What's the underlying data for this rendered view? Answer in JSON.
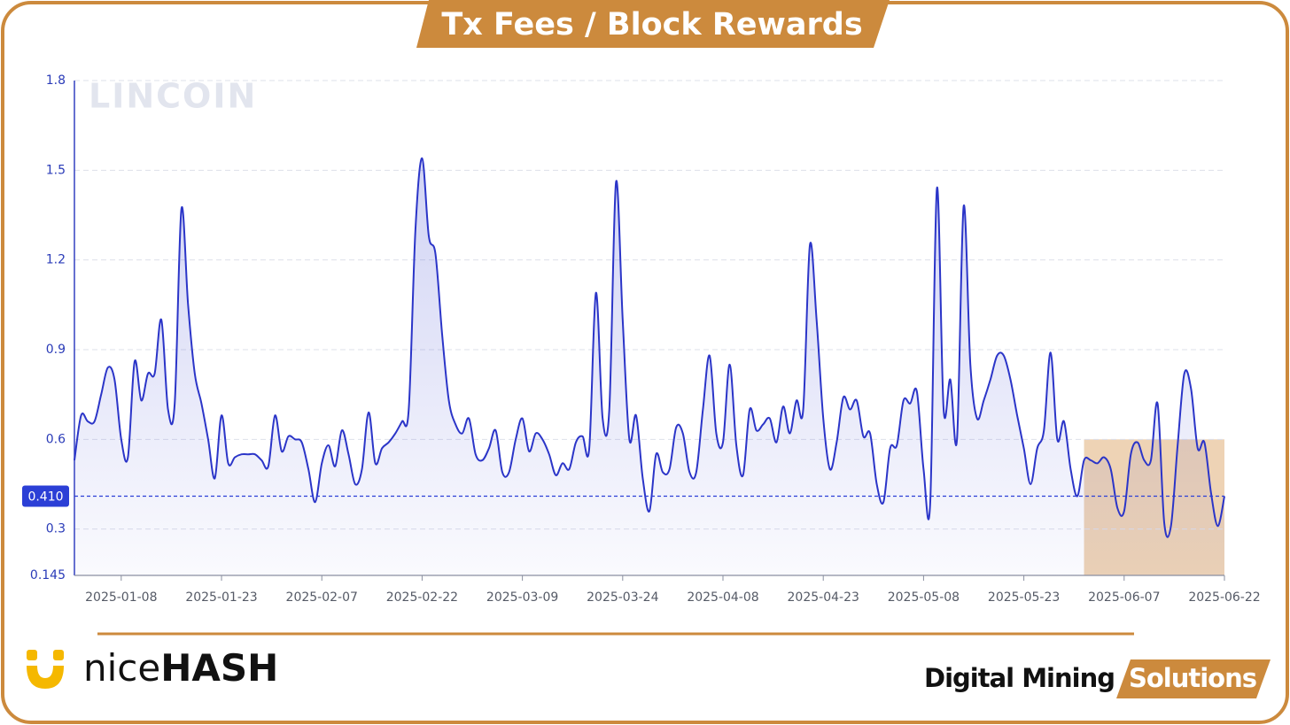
{
  "chart_data": {
    "type": "area",
    "title": "Tx Fees / Block Rewards",
    "x": [
      "2025-01-01",
      "2025-01-02",
      "2025-01-03",
      "2025-01-04",
      "2025-01-05",
      "2025-01-06",
      "2025-01-07",
      "2025-01-08",
      "2025-01-09",
      "2025-01-10",
      "2025-01-11",
      "2025-01-12",
      "2025-01-13",
      "2025-01-14",
      "2025-01-15",
      "2025-01-16",
      "2025-01-17",
      "2025-01-18",
      "2025-01-19",
      "2025-01-20",
      "2025-01-21",
      "2025-01-22",
      "2025-01-23",
      "2025-01-24",
      "2025-01-25",
      "2025-01-26",
      "2025-01-27",
      "2025-01-28",
      "2025-01-29",
      "2025-01-30",
      "2025-01-31",
      "2025-02-01",
      "2025-02-02",
      "2025-02-03",
      "2025-02-04",
      "2025-02-05",
      "2025-02-06",
      "2025-02-07",
      "2025-02-08",
      "2025-02-09",
      "2025-02-10",
      "2025-02-11",
      "2025-02-12",
      "2025-02-13",
      "2025-02-14",
      "2025-02-15",
      "2025-02-16",
      "2025-02-17",
      "2025-02-18",
      "2025-02-19",
      "2025-02-20",
      "2025-02-21",
      "2025-02-22",
      "2025-02-23",
      "2025-02-24",
      "2025-02-25",
      "2025-02-26",
      "2025-02-27",
      "2025-02-28",
      "2025-03-01",
      "2025-03-02",
      "2025-03-03",
      "2025-03-04",
      "2025-03-05",
      "2025-03-06",
      "2025-03-07",
      "2025-03-08",
      "2025-03-09",
      "2025-03-10",
      "2025-03-11",
      "2025-03-12",
      "2025-03-13",
      "2025-03-14",
      "2025-03-15",
      "2025-03-16",
      "2025-03-17",
      "2025-03-18",
      "2025-03-19",
      "2025-03-20",
      "2025-03-21",
      "2025-03-22",
      "2025-03-23",
      "2025-03-24",
      "2025-03-25",
      "2025-03-26",
      "2025-03-27",
      "2025-03-28",
      "2025-03-29",
      "2025-03-30",
      "2025-03-31",
      "2025-04-01",
      "2025-04-02",
      "2025-04-03",
      "2025-04-04",
      "2025-04-05",
      "2025-04-06",
      "2025-04-07",
      "2025-04-08",
      "2025-04-09",
      "2025-04-10",
      "2025-04-11",
      "2025-04-12",
      "2025-04-13",
      "2025-04-14",
      "2025-04-15",
      "2025-04-16",
      "2025-04-17",
      "2025-04-18",
      "2025-04-19",
      "2025-04-20",
      "2025-04-21",
      "2025-04-22",
      "2025-04-23",
      "2025-04-24",
      "2025-04-25",
      "2025-04-26",
      "2025-04-27",
      "2025-04-28",
      "2025-04-29",
      "2025-04-30",
      "2025-05-01",
      "2025-05-02",
      "2025-05-03",
      "2025-05-04",
      "2025-05-05",
      "2025-05-06",
      "2025-05-07",
      "2025-05-08",
      "2025-05-09",
      "2025-05-10",
      "2025-05-11",
      "2025-05-12",
      "2025-05-13",
      "2025-05-14",
      "2025-05-15",
      "2025-05-16",
      "2025-05-17",
      "2025-05-18",
      "2025-05-19",
      "2025-05-20",
      "2025-05-21",
      "2025-05-22",
      "2025-05-23",
      "2025-05-24",
      "2025-05-25",
      "2025-05-26",
      "2025-05-27",
      "2025-05-28",
      "2025-05-29",
      "2025-05-30",
      "2025-05-31",
      "2025-06-01",
      "2025-06-02",
      "2025-06-03",
      "2025-06-04",
      "2025-06-05",
      "2025-06-06",
      "2025-06-07",
      "2025-06-08",
      "2025-06-09",
      "2025-06-10",
      "2025-06-11",
      "2025-06-12",
      "2025-06-13",
      "2025-06-14",
      "2025-06-15",
      "2025-06-16",
      "2025-06-17",
      "2025-06-18",
      "2025-06-19",
      "2025-06-20",
      "2025-06-21",
      "2025-06-22"
    ],
    "values": [
      0.53,
      0.68,
      0.66,
      0.66,
      0.75,
      0.84,
      0.8,
      0.6,
      0.54,
      0.86,
      0.73,
      0.82,
      0.82,
      1.0,
      0.7,
      0.72,
      1.37,
      1.05,
      0.82,
      0.72,
      0.6,
      0.47,
      0.68,
      0.52,
      0.54,
      0.55,
      0.55,
      0.55,
      0.53,
      0.51,
      0.68,
      0.56,
      0.61,
      0.6,
      0.59,
      0.5,
      0.39,
      0.52,
      0.58,
      0.51,
      0.63,
      0.55,
      0.45,
      0.5,
      0.69,
      0.52,
      0.57,
      0.59,
      0.62,
      0.66,
      0.7,
      1.3,
      1.54,
      1.28,
      1.22,
      0.95,
      0.73,
      0.65,
      0.62,
      0.67,
      0.55,
      0.53,
      0.57,
      0.63,
      0.49,
      0.49,
      0.6,
      0.67,
      0.56,
      0.62,
      0.6,
      0.55,
      0.48,
      0.52,
      0.5,
      0.59,
      0.61,
      0.57,
      1.09,
      0.67,
      0.7,
      1.46,
      1.0,
      0.6,
      0.68,
      0.47,
      0.36,
      0.55,
      0.49,
      0.5,
      0.64,
      0.62,
      0.49,
      0.49,
      0.7,
      0.88,
      0.62,
      0.59,
      0.85,
      0.58,
      0.48,
      0.7,
      0.63,
      0.65,
      0.67,
      0.59,
      0.71,
      0.62,
      0.73,
      0.7,
      1.25,
      1.0,
      0.67,
      0.5,
      0.59,
      0.74,
      0.7,
      0.73,
      0.61,
      0.62,
      0.45,
      0.39,
      0.57,
      0.58,
      0.73,
      0.72,
      0.76,
      0.5,
      0.39,
      1.44,
      0.7,
      0.8,
      0.6,
      1.38,
      0.85,
      0.67,
      0.73,
      0.8,
      0.88,
      0.88,
      0.8,
      0.68,
      0.57,
      0.45,
      0.57,
      0.63,
      0.89,
      0.6,
      0.66,
      0.5,
      0.41,
      0.53,
      0.53,
      0.52,
      0.54,
      0.5,
      0.37,
      0.36,
      0.55,
      0.59,
      0.53,
      0.53,
      0.72,
      0.32,
      0.31,
      0.58,
      0.82,
      0.77,
      0.57,
      0.59,
      0.42,
      0.31,
      0.41
    ],
    "color": "#2b35c8",
    "xlim": [
      "2025-01-01",
      "2025-06-22"
    ],
    "xticks": [
      "2025-01-08",
      "2025-01-23",
      "2025-02-07",
      "2025-02-22",
      "2025-03-09",
      "2025-03-24",
      "2025-04-08",
      "2025-04-23",
      "2025-05-08",
      "2025-05-23",
      "2025-06-07",
      "2025-06-22"
    ],
    "ylim": [
      0.145,
      1.8
    ],
    "yticks": [
      0.145,
      0.3,
      0.6,
      0.9,
      1.2,
      1.5,
      1.8
    ],
    "grid": true,
    "reference_line": {
      "value": 0.41,
      "label": "0.410",
      "color": "#2b3fd6"
    },
    "highlight": {
      "x": [
        "2025-06-01",
        "2025-06-22"
      ],
      "y": [
        0.145,
        0.6
      ],
      "color": "#e8c49c"
    }
  },
  "branding": {
    "watermark": "LINCOIN",
    "logo": {
      "light": "nice",
      "bold": "HASH"
    },
    "footer": {
      "dark": "Digital Mining",
      "highlight": "Solutions"
    }
  }
}
